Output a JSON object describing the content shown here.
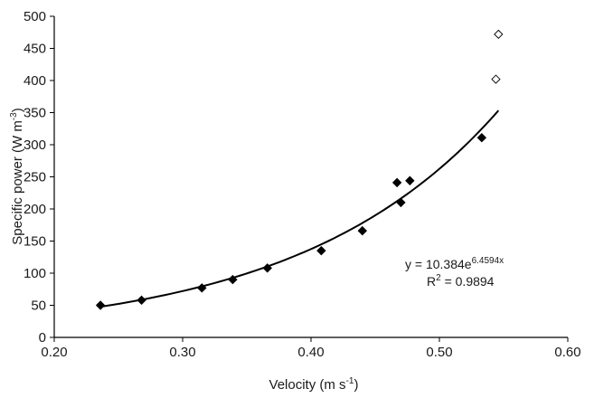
{
  "chart_data": {
    "type": "scatter",
    "xlabel": {
      "base": "Velocity (m s",
      "sup": "-1",
      "tail": ")"
    },
    "ylabel": {
      "base": "Specific power  (W m",
      "sup": "-3",
      "tail": ")"
    },
    "xlim": [
      0.2,
      0.6
    ],
    "ylim": [
      0,
      500
    ],
    "x_ticks": [
      0.2,
      0.3,
      0.4,
      0.5,
      0.6
    ],
    "x_tick_labels": [
      "0.20",
      "0.30",
      "0.40",
      "0.50",
      "0.60"
    ],
    "y_ticks": [
      0,
      50,
      100,
      150,
      200,
      250,
      300,
      350,
      400,
      450,
      500
    ],
    "y_tick_labels": [
      "0",
      "50",
      "100",
      "150",
      "200",
      "250",
      "300",
      "350",
      "400",
      "450",
      "500"
    ],
    "grid": false,
    "series": [
      {
        "marker": "filled-diamond",
        "color": "#000000",
        "x": [
          0.236,
          0.268,
          0.315,
          0.339,
          0.366,
          0.408,
          0.44,
          0.467,
          0.47,
          0.477,
          0.533
        ],
        "y": [
          50,
          58,
          77,
          90,
          108,
          135,
          166,
          241,
          210,
          244,
          311
        ]
      },
      {
        "marker": "hollow-diamond",
        "color": "#000000",
        "x": [
          0.544,
          0.546
        ],
        "y": [
          402,
          472
        ]
      }
    ],
    "trendline": {
      "type": "exponential",
      "a": 10.384,
      "b": 6.4594,
      "x_range": [
        0.236,
        0.546
      ],
      "equation": {
        "base": "y = 10.384e",
        "sup": "6.4594x"
      },
      "r2": {
        "base": "R",
        "sup": "2",
        "tail": " = 0.9894"
      }
    }
  }
}
